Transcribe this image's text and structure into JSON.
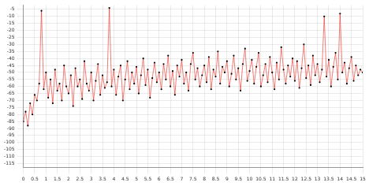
{
  "chart_data": {
    "type": "line",
    "x": [
      0,
      0.1,
      0.2,
      0.3,
      0.4,
      0.5,
      0.6,
      0.7,
      0.8,
      0.9,
      1,
      1.1,
      1.2,
      1.3,
      1.4,
      1.5,
      1.6,
      1.7,
      1.8,
      1.9,
      2,
      2.1,
      2.2,
      2.3,
      2.4,
      2.5,
      2.6,
      2.7,
      2.8,
      2.9,
      3,
      3.1,
      3.2,
      3.3,
      3.4,
      3.5,
      3.6,
      3.7,
      3.8,
      3.9,
      4,
      4.1,
      4.2,
      4.3,
      4.4,
      4.5,
      4.6,
      4.7,
      4.8,
      4.9,
      5,
      5.1,
      5.2,
      5.3,
      5.4,
      5.5,
      5.6,
      5.7,
      5.8,
      5.9,
      6,
      6.1,
      6.2,
      6.3,
      6.4,
      6.5,
      6.6,
      6.7,
      6.8,
      6.9,
      7,
      7.1,
      7.2,
      7.3,
      7.4,
      7.5,
      7.6,
      7.7,
      7.8,
      7.9,
      8,
      8.1,
      8.2,
      8.3,
      8.4,
      8.5,
      8.6,
      8.7,
      8.8,
      8.9,
      9,
      9.1,
      9.2,
      9.3,
      9.4,
      9.5,
      9.6,
      9.7,
      9.8,
      9.9,
      10,
      10.1,
      10.2,
      10.3,
      10.4,
      10.5,
      10.6,
      10.7,
      10.8,
      10.9,
      11,
      11.1,
      11.2,
      11.3,
      11.4,
      11.5,
      11.6,
      11.7,
      11.8,
      11.9,
      12,
      12.1,
      12.2,
      12.3,
      12.4,
      12.5,
      12.6,
      12.7,
      12.8,
      12.9,
      13,
      13.1,
      13.2,
      13.3,
      13.4,
      13.5,
      13.6,
      13.7,
      13.8,
      13.9,
      14,
      14.1,
      14.2,
      14.3,
      14.4,
      14.5,
      14.6,
      14.7,
      14.8,
      14.9,
      15
    ],
    "values": [
      -85,
      -78,
      -88,
      -72,
      -80,
      -66,
      -70,
      -58,
      -6,
      -62,
      -50,
      -68,
      -55,
      -72,
      -48,
      -63,
      -58,
      -70,
      -45,
      -60,
      -65,
      -52,
      -74,
      -47,
      -60,
      -55,
      -69,
      -42,
      -58,
      -63,
      -50,
      -70,
      -56,
      -44,
      -66,
      -52,
      -61,
      -57,
      -4,
      -60,
      -48,
      -66,
      -53,
      -45,
      -70,
      -55,
      -42,
      -62,
      -50,
      -58,
      -46,
      -65,
      -52,
      -40,
      -59,
      -48,
      -68,
      -54,
      -43,
      -57,
      -50,
      -62,
      -44,
      -55,
      -38,
      -60,
      -49,
      -66,
      -45,
      -53,
      -41,
      -58,
      -50,
      -63,
      -44,
      -36,
      -55,
      -47,
      -60,
      -52,
      -45,
      -57,
      -39,
      -62,
      -48,
      -53,
      -35,
      -58,
      -46,
      -50,
      -42,
      -60,
      -51,
      -38,
      -55,
      -47,
      -63,
      -44,
      -33,
      -56,
      -49,
      -41,
      -58,
      -46,
      -36,
      -60,
      -52,
      -44,
      -57,
      -39,
      -50,
      -62,
      -43,
      -55,
      -32,
      -48,
      -58,
      -45,
      -53,
      -40,
      -56,
      -42,
      -61,
      -47,
      -30,
      -54,
      -45,
      -59,
      -38,
      -52,
      -44,
      -57,
      -48,
      -10,
      -53,
      -41,
      -60,
      -46,
      -36,
      -55,
      -8,
      -50,
      -43,
      -58,
      -47,
      -39,
      -56,
      -45,
      -52,
      -48,
      -50
    ],
    "color": "#e8271c",
    "marker": "circle",
    "line_style": "solid",
    "xlim": [
      0,
      15
    ],
    "xticks": [
      0,
      0.5,
      1,
      1.5,
      2,
      2.5,
      3,
      3.5,
      4,
      4.5,
      5,
      5.5,
      6,
      6.5,
      7,
      7.5,
      8,
      8.5,
      9,
      9.5,
      10,
      10.5,
      11,
      11.5,
      12,
      12.5,
      13,
      13.5,
      14,
      14.5,
      15
    ],
    "ylim": [
      -118,
      -2
    ],
    "yticks": [
      -115,
      -110,
      -105,
      -100,
      -95,
      -90,
      -85,
      -80,
      -75,
      -70,
      -65,
      -60,
      -55,
      -50,
      -45,
      -40,
      -35,
      -30,
      -25,
      -20,
      -15,
      -10,
      -5
    ],
    "grid": true
  }
}
